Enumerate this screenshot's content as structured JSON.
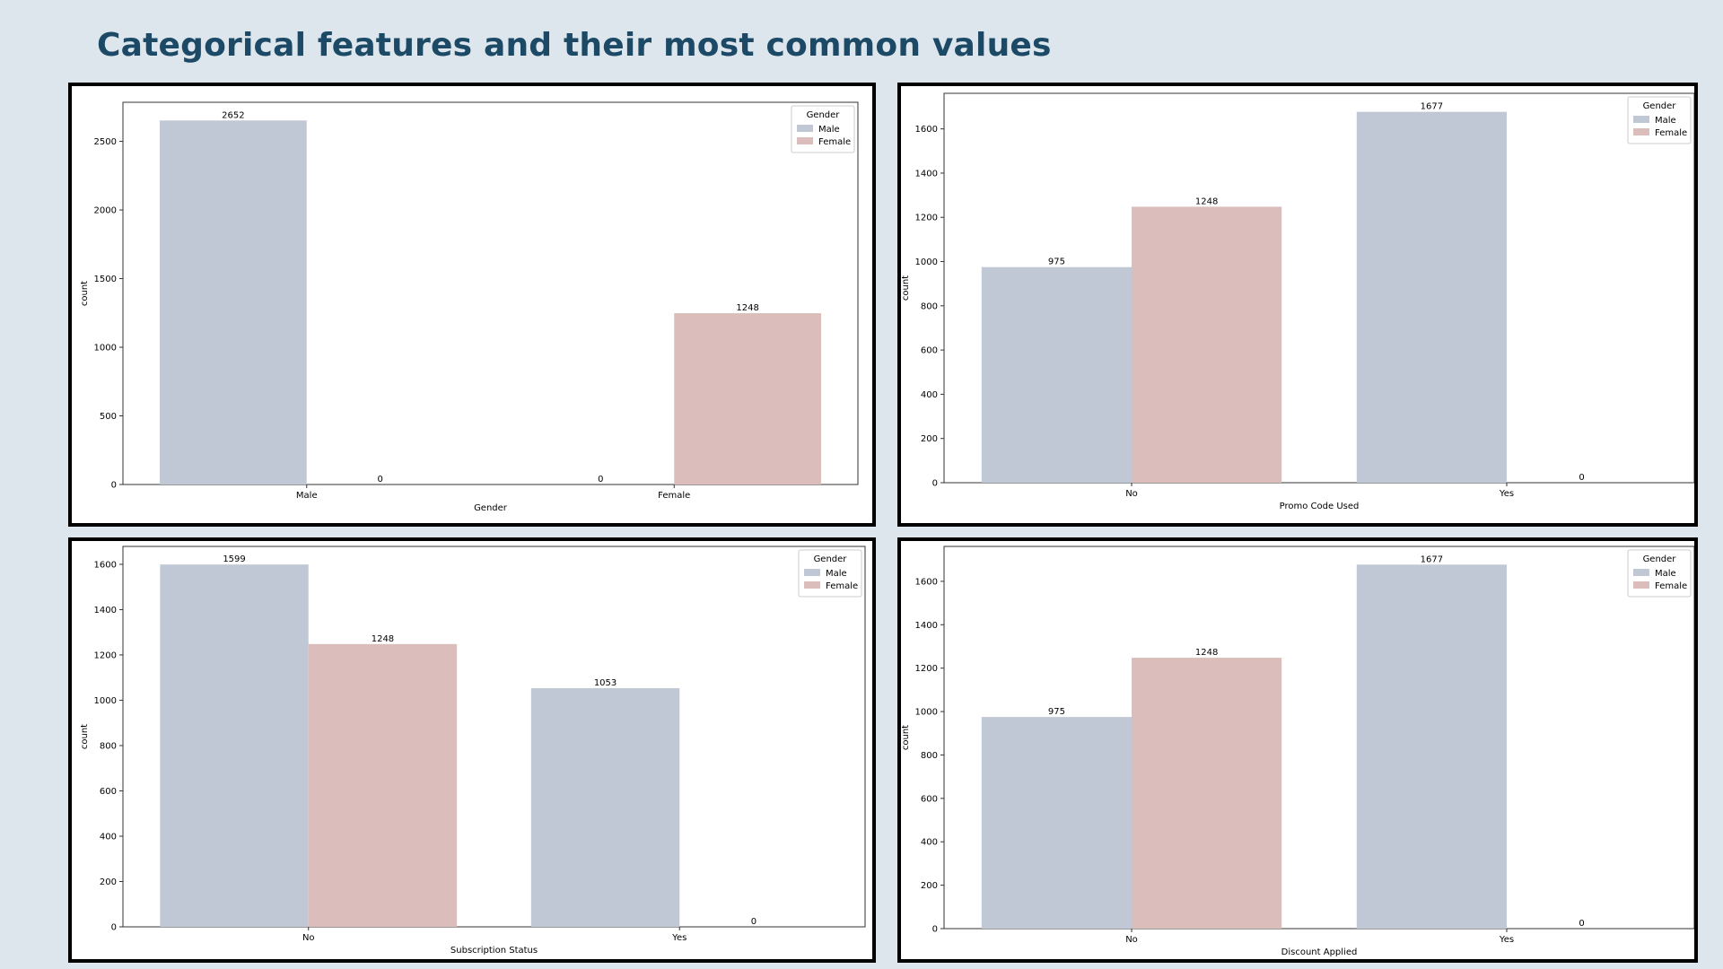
{
  "page": {
    "title": "Categorical features and their most common values"
  },
  "colors": {
    "Male": "#c0c7d5",
    "Female": "#dbbdbb",
    "background": "#dde6ec",
    "title": "#1c4a66"
  },
  "chart_data": [
    {
      "type": "bar",
      "categories": [
        "Male",
        "Female"
      ],
      "series": [
        {
          "name": "Male",
          "values": [
            2652,
            0
          ]
        },
        {
          "name": "Female",
          "values": [
            0,
            1248
          ]
        }
      ],
      "bar_labels": [
        [
          "2652",
          "0"
        ],
        [
          "0",
          "1248"
        ]
      ],
      "xlabel": "Gender",
      "ylabel": "count",
      "yticks": [
        0,
        500,
        1000,
        1500,
        2000,
        2500
      ],
      "ylim": [
        0,
        2784.6
      ],
      "legend": {
        "title": "Gender",
        "placement": "top-right"
      },
      "grid": false
    },
    {
      "type": "bar",
      "categories": [
        "No",
        "Yes"
      ],
      "series": [
        {
          "name": "Male",
          "values": [
            975,
            1677
          ]
        },
        {
          "name": "Female",
          "values": [
            1248,
            0
          ]
        }
      ],
      "bar_labels": [
        [
          "975",
          "1677"
        ],
        [
          "1248",
          "0"
        ]
      ],
      "xlabel": "Promo Code Used",
      "ylabel": "count",
      "yticks": [
        0,
        200,
        400,
        600,
        800,
        1000,
        1200,
        1400,
        1600
      ],
      "ylim": [
        0,
        1760.85
      ],
      "legend": {
        "title": "Gender",
        "placement": "top-right"
      },
      "grid": false
    },
    {
      "type": "bar",
      "categories": [
        "No",
        "Yes"
      ],
      "series": [
        {
          "name": "Male",
          "values": [
            1599,
            1053
          ]
        },
        {
          "name": "Female",
          "values": [
            1248,
            0
          ]
        }
      ],
      "bar_labels": [
        [
          "1599",
          "1053"
        ],
        [
          "1248",
          "0"
        ]
      ],
      "xlabel": "Subscription Status",
      "ylabel": "count",
      "yticks": [
        0,
        200,
        400,
        600,
        800,
        1000,
        1200,
        1400,
        1600
      ],
      "ylim": [
        0,
        1678.95
      ],
      "legend": {
        "title": "Gender",
        "placement": "top-right"
      },
      "grid": false
    },
    {
      "type": "bar",
      "categories": [
        "No",
        "Yes"
      ],
      "series": [
        {
          "name": "Male",
          "values": [
            975,
            1677
          ]
        },
        {
          "name": "Female",
          "values": [
            1248,
            0
          ]
        }
      ],
      "bar_labels": [
        [
          "975",
          "1677"
        ],
        [
          "1248",
          "0"
        ]
      ],
      "xlabel": "Discount Applied",
      "ylabel": "count",
      "yticks": [
        0,
        200,
        400,
        600,
        800,
        1000,
        1200,
        1400,
        1600
      ],
      "ylim": [
        0,
        1760.85
      ],
      "legend": {
        "title": "Gender",
        "placement": "top-right"
      },
      "grid": false
    }
  ]
}
